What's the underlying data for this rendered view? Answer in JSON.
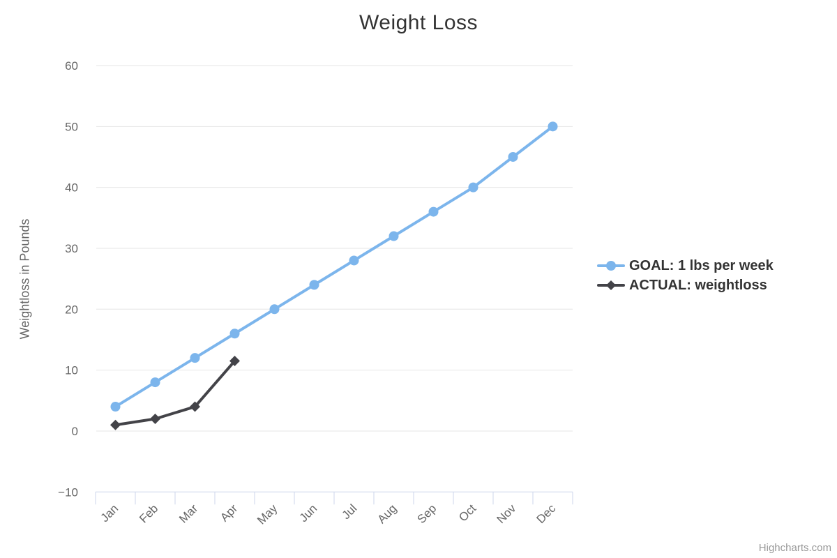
{
  "chart_data": {
    "type": "line",
    "title": "Weight Loss",
    "xlabel": "",
    "ylabel": "Weightloss in Pounds",
    "categories": [
      "Jan",
      "Feb",
      "Mar",
      "Apr",
      "May",
      "Jun",
      "Jul",
      "Aug",
      "Sep",
      "Oct",
      "Nov",
      "Dec"
    ],
    "ylim": [
      -10,
      60
    ],
    "ytick_interval": 10,
    "yticks": [
      -10,
      0,
      10,
      20,
      30,
      40,
      50,
      60
    ],
    "grid": true,
    "legend_position": "right",
    "series": [
      {
        "name": "GOAL: 1 lbs per week",
        "color": "#7cb5ec",
        "marker": "circle",
        "values": [
          4,
          8,
          12,
          16,
          20,
          24,
          28,
          32,
          36,
          40,
          45,
          50
        ]
      },
      {
        "name": "ACTUAL: weightloss",
        "color": "#434348",
        "marker": "diamond",
        "values": [
          1,
          2,
          4,
          11.5
        ]
      }
    ],
    "credits": "Highcharts.com"
  },
  "style_colors": {
    "gridline": "#e6e6e6",
    "axis_line": "#ccd6eb",
    "axis_label": "#666666",
    "title_color": "#333333",
    "legend_text": "#333333",
    "credits_color": "#999999"
  }
}
